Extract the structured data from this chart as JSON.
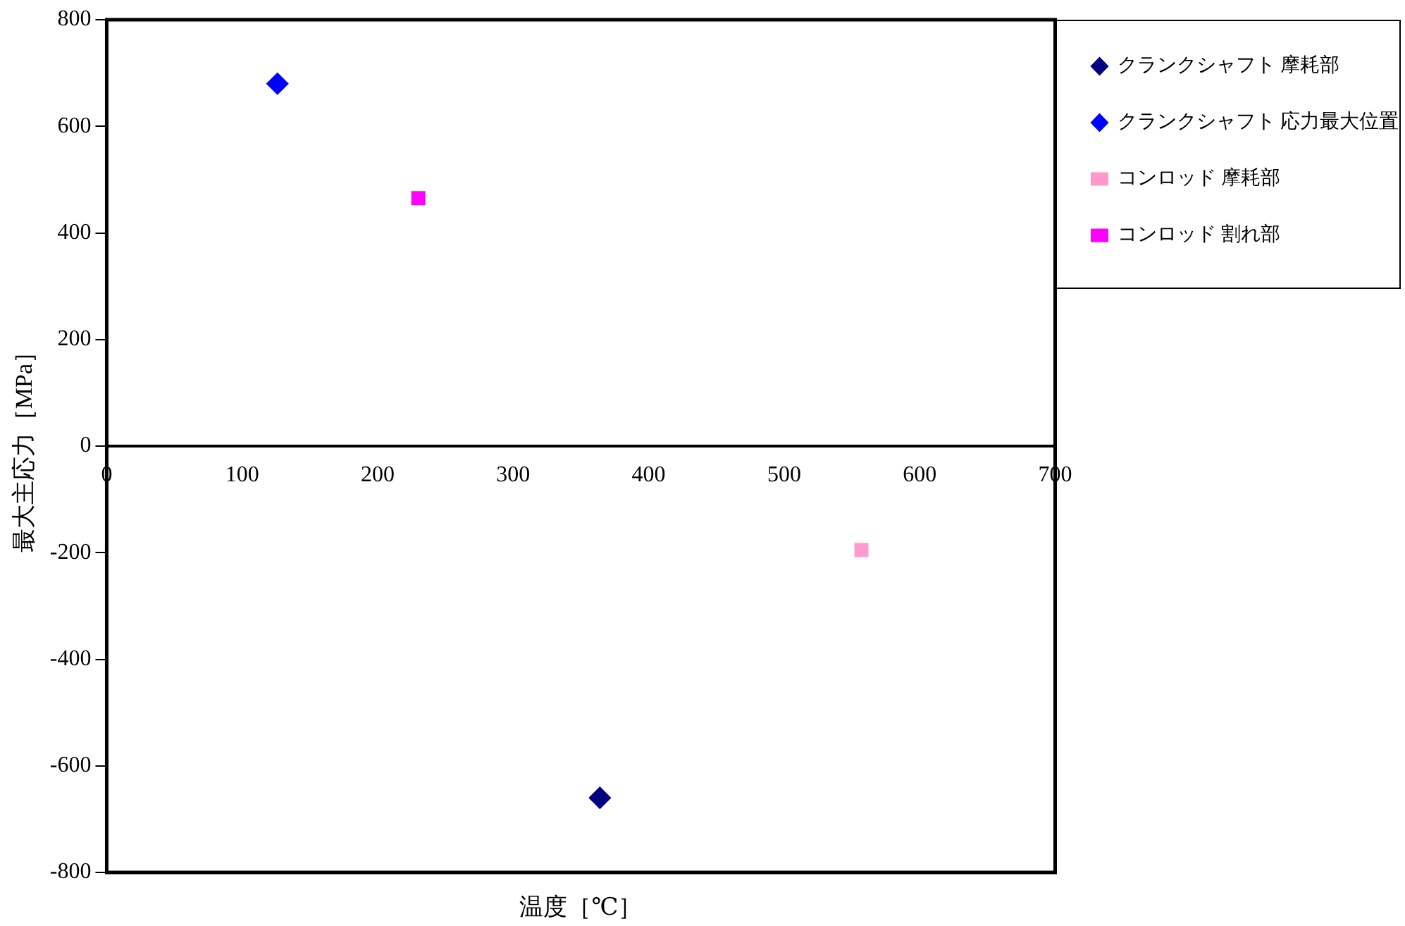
{
  "chart_data": {
    "type": "scatter",
    "xlabel": "温度［℃］",
    "ylabel": "最大主応力［MPa］",
    "xlim": [
      0,
      700
    ],
    "xticks": [
      0,
      100,
      200,
      300,
      400,
      500,
      600,
      700
    ],
    "ylim": [
      -800,
      800
    ],
    "yticks": [
      -800,
      -600,
      -400,
      -200,
      0,
      200,
      400,
      600,
      800
    ],
    "grid": false,
    "legend": "top right",
    "series": [
      {
        "name": "クランクシャフト 摩耗部",
        "color": "#000080",
        "marker": "diamond",
        "x": [
          364
        ],
        "values": [
          -660
        ]
      },
      {
        "name": "クランクシャフト 応力最大位置",
        "color": "#0000ff",
        "marker": "diamond",
        "x": [
          126
        ],
        "values": [
          680
        ]
      },
      {
        "name": "コンロッド 摩耗部",
        "color": "#ff99cc",
        "marker": "square",
        "x": [
          557
        ],
        "values": [
          -195
        ]
      },
      {
        "name": "コンロッド 割れ部",
        "color": "#ff00ff",
        "marker": "square",
        "x": [
          230
        ],
        "values": [
          465
        ]
      }
    ]
  }
}
